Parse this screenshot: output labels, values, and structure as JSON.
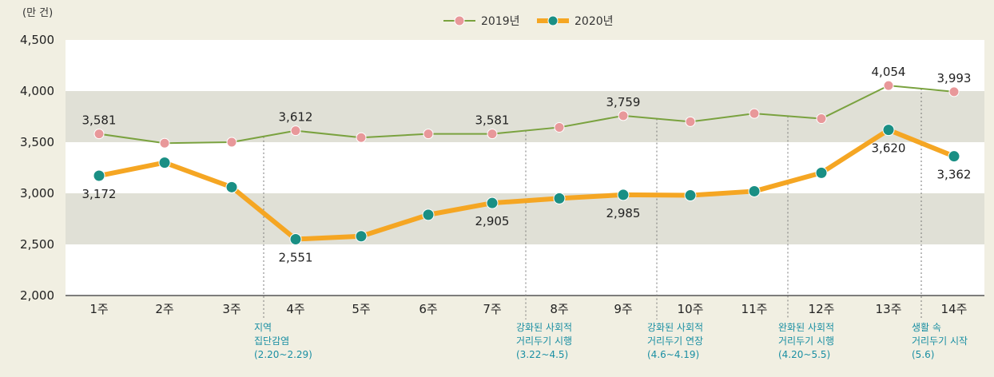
{
  "chart_data": {
    "type": "line",
    "unit_label": "(만 건)",
    "categories": [
      "1주",
      "2주",
      "3주",
      "4주",
      "5주",
      "6주",
      "7주",
      "8주",
      "9주",
      "10주",
      "11주",
      "12주",
      "13주",
      "14주"
    ],
    "ylim": [
      2000,
      4500
    ],
    "yticks": [
      "2,000",
      "2,500",
      "3,000",
      "3,500",
      "4,000",
      "4,500"
    ],
    "ytick_values": [
      2000,
      2500,
      3000,
      3500,
      4000,
      4500
    ],
    "legend_position": "top-center",
    "series": [
      {
        "name": "2019년",
        "line_color": "#7aa23f",
        "marker_color": "#e8989a",
        "values": [
          3581,
          3490,
          3500,
          3612,
          3545,
          3581,
          3581,
          3645,
          3759,
          3700,
          3780,
          3730,
          4054,
          3993
        ],
        "labels": [
          {
            "index": 0,
            "text": "3,581",
            "pos": "above"
          },
          {
            "index": 3,
            "text": "3,612",
            "pos": "above"
          },
          {
            "index": 6,
            "text": "3,581",
            "pos": "above"
          },
          {
            "index": 8,
            "text": "3,759",
            "pos": "above"
          },
          {
            "index": 12,
            "text": "4,054",
            "pos": "above"
          },
          {
            "index": 13,
            "text": "3,993",
            "pos": "above"
          }
        ]
      },
      {
        "name": "2020년",
        "line_color": "#f5a623",
        "marker_color": "#1a8f84",
        "values": [
          3172,
          3300,
          3060,
          2551,
          2580,
          2790,
          2905,
          2950,
          2985,
          2980,
          3020,
          3200,
          3620,
          3362
        ],
        "labels": [
          {
            "index": 0,
            "text": "3,172",
            "pos": "below"
          },
          {
            "index": 3,
            "text": "2,551",
            "pos": "below"
          },
          {
            "index": 6,
            "text": "2,905",
            "pos": "below"
          },
          {
            "index": 8,
            "text": "2,985",
            "pos": "below"
          },
          {
            "index": 12,
            "text": "3,620",
            "pos": "below"
          },
          {
            "index": 13,
            "text": "3,362",
            "pos": "below"
          }
        ]
      }
    ],
    "annotations": [
      {
        "after_index": 2,
        "lines": [
          "지역",
          "집단감염",
          "(2.20~2.29)"
        ]
      },
      {
        "after_index": 6,
        "lines": [
          "강화된 사회적",
          "거리두기 시행",
          "(3.22~4.5)"
        ]
      },
      {
        "after_index": 8,
        "lines": [
          "강화된 사회적",
          "거리두기 연장",
          "(4.6~4.19)"
        ]
      },
      {
        "after_index": 10,
        "lines": [
          "완화된 사회적",
          "거리두기 시행",
          "(4.20~5.5)"
        ]
      },
      {
        "after_index": 12,
        "lines": [
          "생활 속",
          "거리두기 시작",
          "(5.6)"
        ]
      }
    ]
  }
}
